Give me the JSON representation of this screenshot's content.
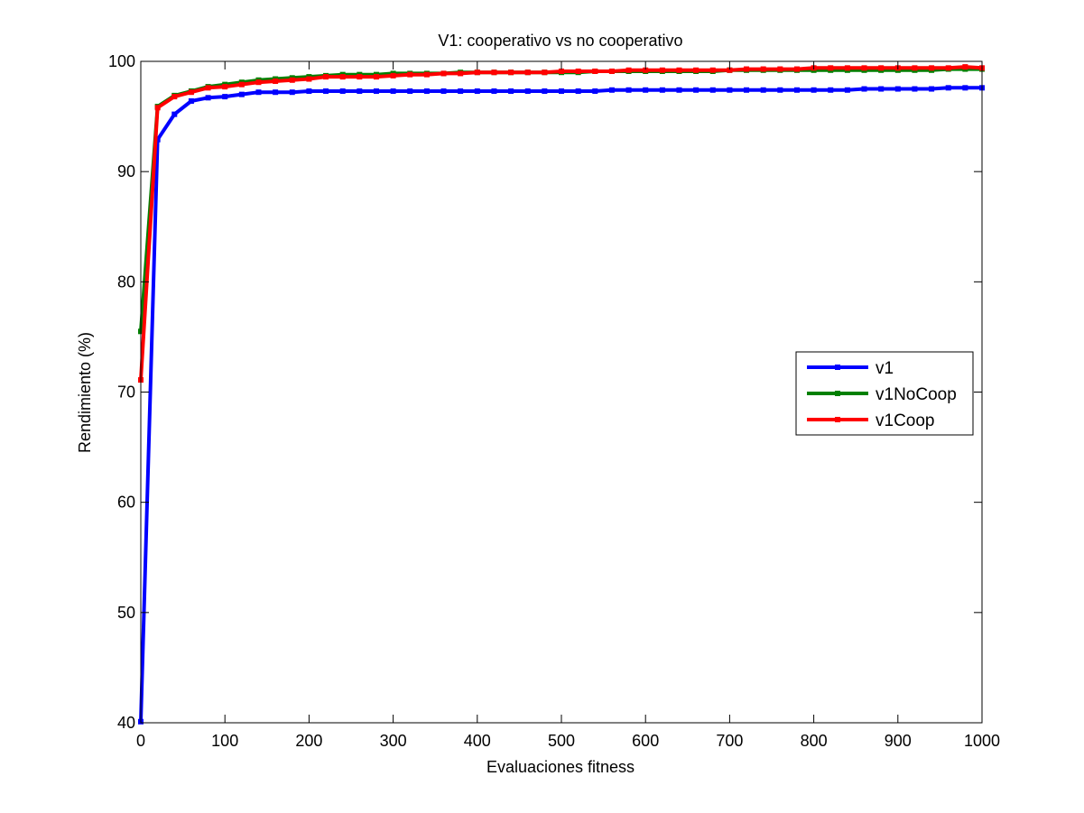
{
  "chart_data": {
    "type": "line",
    "title": "V1: cooperativo vs no cooperativo",
    "xlabel": "Evaluaciones fitness",
    "ylabel": "Rendimiento (%)",
    "xlim": [
      0,
      1000
    ],
    "ylim": [
      40,
      100
    ],
    "xticks": [
      0,
      100,
      200,
      300,
      400,
      500,
      600,
      700,
      800,
      900,
      1000
    ],
    "yticks": [
      40,
      50,
      60,
      70,
      80,
      90,
      100
    ],
    "grid": false,
    "legend_position": "right",
    "x": [
      0,
      20,
      40,
      60,
      80,
      100,
      120,
      140,
      160,
      180,
      200,
      220,
      240,
      260,
      280,
      300,
      320,
      340,
      360,
      380,
      400,
      420,
      440,
      460,
      480,
      500,
      520,
      540,
      560,
      580,
      600,
      620,
      640,
      660,
      680,
      700,
      720,
      740,
      760,
      780,
      800,
      820,
      840,
      860,
      880,
      900,
      920,
      940,
      960,
      980,
      1000
    ],
    "series": [
      {
        "name": "v1",
        "color": "#0000ff",
        "values": [
          40.1,
          92.9,
          95.2,
          96.4,
          96.7,
          96.8,
          97.0,
          97.2,
          97.2,
          97.2,
          97.3,
          97.3,
          97.3,
          97.3,
          97.3,
          97.3,
          97.3,
          97.3,
          97.3,
          97.3,
          97.3,
          97.3,
          97.3,
          97.3,
          97.3,
          97.3,
          97.3,
          97.3,
          97.4,
          97.4,
          97.4,
          97.4,
          97.4,
          97.4,
          97.4,
          97.4,
          97.4,
          97.4,
          97.4,
          97.4,
          97.4,
          97.4,
          97.4,
          97.5,
          97.5,
          97.5,
          97.5,
          97.5,
          97.6,
          97.6,
          97.6
        ]
      },
      {
        "name": "v1NoCoop",
        "color": "#008000",
        "values": [
          75.5,
          95.9,
          96.9,
          97.3,
          97.7,
          97.9,
          98.1,
          98.3,
          98.4,
          98.5,
          98.6,
          98.7,
          98.8,
          98.8,
          98.8,
          98.9,
          98.9,
          98.9,
          98.9,
          99.0,
          99.0,
          99.0,
          99.0,
          99.0,
          99.0,
          99.0,
          99.0,
          99.1,
          99.1,
          99.1,
          99.1,
          99.1,
          99.1,
          99.1,
          99.1,
          99.2,
          99.2,
          99.2,
          99.2,
          99.2,
          99.2,
          99.2,
          99.2,
          99.2,
          99.2,
          99.2,
          99.2,
          99.2,
          99.3,
          99.3,
          99.3
        ]
      },
      {
        "name": "v1Coop",
        "color": "#ff0000",
        "values": [
          71.1,
          95.8,
          96.8,
          97.2,
          97.6,
          97.7,
          97.9,
          98.1,
          98.2,
          98.3,
          98.4,
          98.6,
          98.6,
          98.6,
          98.6,
          98.7,
          98.8,
          98.8,
          98.9,
          98.9,
          99.0,
          99.0,
          99.0,
          99.0,
          99.0,
          99.1,
          99.1,
          99.1,
          99.1,
          99.2,
          99.2,
          99.2,
          99.2,
          99.2,
          99.2,
          99.2,
          99.3,
          99.3,
          99.3,
          99.3,
          99.4,
          99.4,
          99.4,
          99.4,
          99.4,
          99.4,
          99.4,
          99.4,
          99.4,
          99.5,
          99.4
        ]
      }
    ]
  }
}
